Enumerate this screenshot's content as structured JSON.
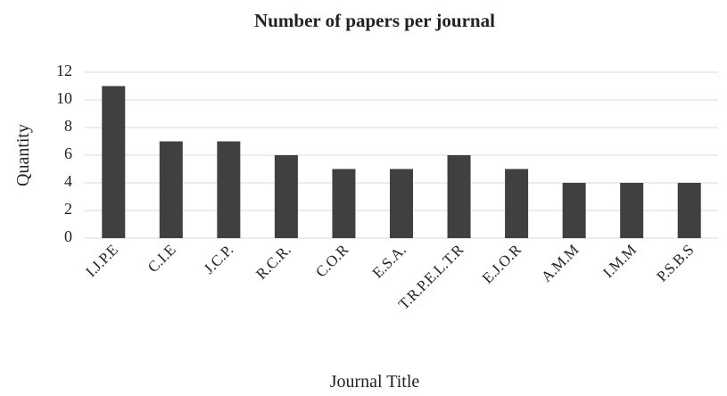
{
  "chart_data": {
    "type": "bar",
    "title": "Number of papers per journal",
    "x_label": "Journal Title",
    "y_label": "Quantity",
    "categories": [
      "I.J.P.E",
      "C.I.E",
      "J.C.P.",
      "R.C.R.",
      "C.O.R",
      "E.S.A.",
      "T.R.P.E.L.T.R",
      "E.J.O.R",
      "A.M.M",
      "I.M.M",
      "P.S.B.S"
    ],
    "values": [
      11,
      7,
      7,
      6,
      5,
      5,
      6,
      5,
      4,
      4,
      4
    ],
    "color": "#404040",
    "ylim": [
      0,
      12
    ],
    "yticks": [
      0,
      2,
      4,
      6,
      8,
      10,
      12
    ],
    "grid": true
  }
}
